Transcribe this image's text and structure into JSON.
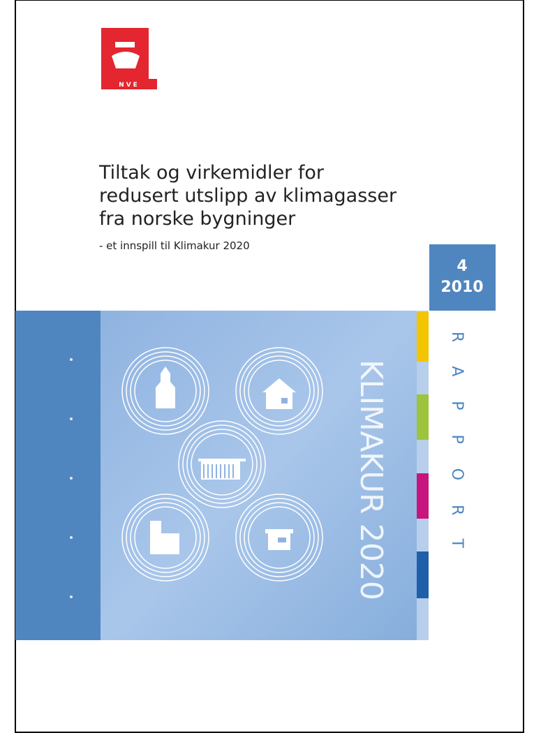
{
  "logo": {
    "label": "NVE"
  },
  "title": [
    "Tiltak og virkemidler for",
    "redusert utslipp av klimagasser",
    "fra norske bygninger"
  ],
  "subtitle": "- et innspill til Klimakur 2020",
  "report": {
    "number": "4",
    "year": "2010",
    "label": "RAPPORT"
  },
  "series_title": "KLIMAKUR 2020"
}
